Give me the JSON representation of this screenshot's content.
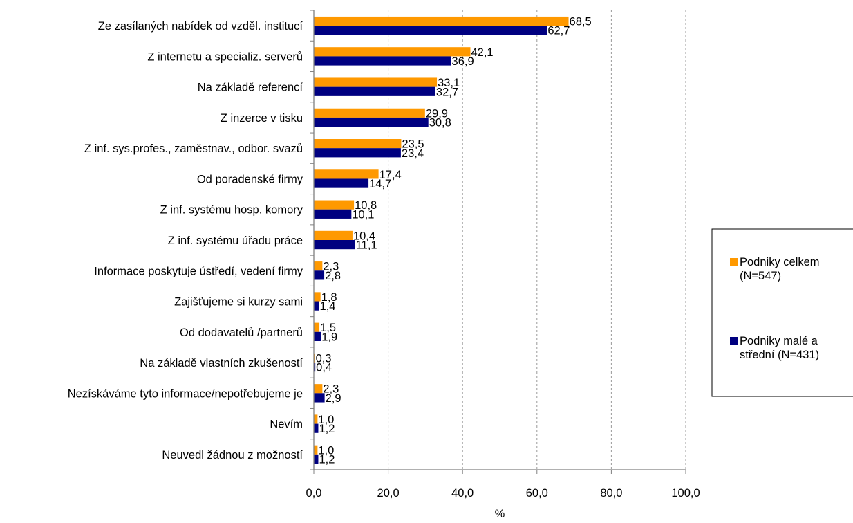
{
  "chart_data": {
    "type": "bar",
    "orientation": "horizontal",
    "categories": [
      "Ze zasílaných nabídek od vzděl. institucí",
      "Z internetu a specializ. serverů",
      "Na základě referencí",
      "Z inzerce v tisku",
      "Z inf. sys.profes., zaměstnav., odbor. svazů",
      "Od poradenské firmy",
      "Z inf. systému hosp. komory",
      "Z inf. systému úřadu práce",
      "Informace poskytuje ústředí, vedení firmy",
      "Zajišťujeme si kurzy sami",
      "Od dodavatelů /partnerů",
      "Na základě vlastních zkušeností",
      "Nezískáváme tyto informace/nepotřebujeme je",
      "Nevím",
      "Neuvedl žádnou z možností"
    ],
    "series": [
      {
        "name": "Podniky celkem (N=547)",
        "legend_lines": [
          "Podniky celkem",
          "(N=547)"
        ],
        "color": "#FF9900",
        "values": [
          68.5,
          42.1,
          33.1,
          29.9,
          23.5,
          17.4,
          10.8,
          10.4,
          2.3,
          1.8,
          1.5,
          0.3,
          2.3,
          1.0,
          1.0
        ],
        "labels": [
          "68,5",
          "42,1",
          "33,1",
          "29,9",
          "23,5",
          "17,4",
          "10,8",
          "10,4",
          "2,3",
          "1,8",
          "1,5",
          "0,3",
          "2,3",
          "1,0",
          "1,0"
        ]
      },
      {
        "name": "Podniky malé a střední (N=431)",
        "legend_lines": [
          "Podniky malé a",
          "střední (N=431)"
        ],
        "color": "#000080",
        "values": [
          62.7,
          36.9,
          32.7,
          30.8,
          23.4,
          14.7,
          10.1,
          11.1,
          2.8,
          1.4,
          1.9,
          0.4,
          2.9,
          1.2,
          1.2
        ],
        "labels": [
          "62,7",
          "36,9",
          "32,7",
          "30,8",
          "23,4",
          "14,7",
          "10,1",
          "11,1",
          "2,8",
          "1,4",
          "1,9",
          "0,4",
          "2,9",
          "1,2",
          "1,2"
        ]
      }
    ],
    "x_ticks": [
      "0,0",
      "20,0",
      "40,0",
      "60,0",
      "80,0",
      "100,0"
    ],
    "xlim": [
      0,
      100
    ],
    "xlabel": "%",
    "ylabel": "",
    "title": "",
    "grid": "vertical dashed",
    "legend_position": "right"
  }
}
